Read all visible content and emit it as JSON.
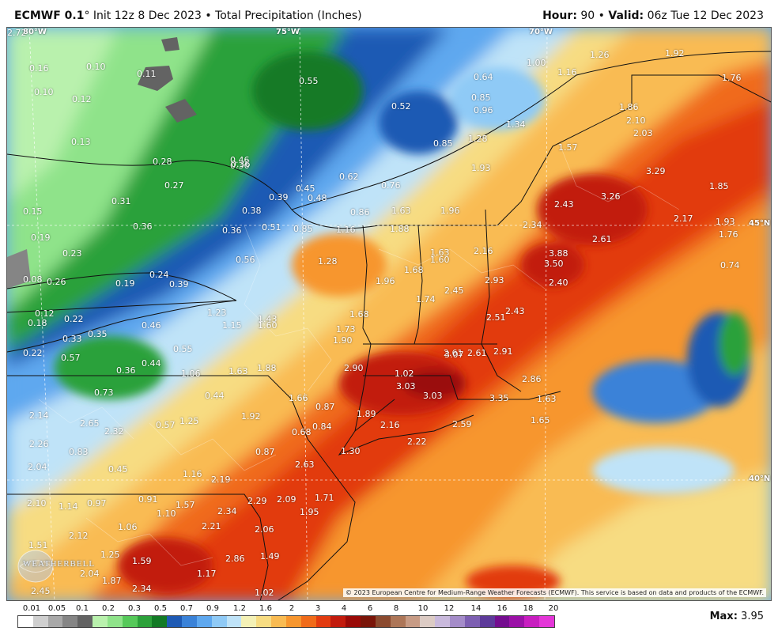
{
  "header": {
    "model": "ECMWF 0.1",
    "init": "Init 12z 8 Dec 2023",
    "product": "Total Precipitation (Inches)",
    "hour_label": "Hour",
    "hour": "90",
    "valid_label": "Valid",
    "valid": "06z Tue 12 Dec 2023"
  },
  "map": {
    "credit": "© 2023 European Centre for Medium-Range Weather Forecasts (ECMWF). This service is based on data and products of the ECMWF.",
    "logo_text": "WEATHERBELL",
    "grid_labels": [
      {
        "text": "80°W"
      },
      {
        "text": "75°W"
      },
      {
        "text": "70°W"
      },
      {
        "text": "45°N"
      },
      {
        "text": "40°N"
      }
    ],
    "values": [
      "0.16",
      "0.10",
      "0.11",
      "0.10",
      "0.12",
      "0.13",
      "0.28",
      "0.27",
      "0.46",
      "0.36",
      "0.55",
      "0.36",
      "0.52",
      "0.64",
      "1.00",
      "1.26",
      "1.92",
      "1.16",
      "1.76",
      "0.85",
      "0.96",
      "1.34",
      "0.85",
      "1.28",
      "0.62",
      "0.45",
      "0.48",
      "0.76",
      "1.57",
      "1.86",
      "2.10",
      "2.03",
      "1.93",
      "0.31",
      "0.36",
      "0.38",
      "0.39",
      "0.86",
      "1.63",
      "1.96",
      "3.29",
      "2.43",
      "3.26",
      "1.85",
      "0.15",
      "0.36",
      "0.51",
      "0.85",
      "1.16",
      "1.88",
      "2.34",
      "2.17",
      "1.93",
      "0.19",
      "0.23",
      "0.56",
      "1.28",
      "1.63",
      "1.60",
      "2.16",
      "2.61",
      "1.76",
      "0.74",
      "0.08",
      "0.26",
      "0.19",
      "0.24",
      "0.39",
      "1.96",
      "1.68",
      "3.88",
      "3.50",
      "2.45",
      "2.93",
      "2.40",
      "1.74",
      "2.43",
      "0.12",
      "0.18",
      "0.22",
      "1.23",
      "1.43",
      "1.60",
      "1.15",
      "1.68",
      "0.46",
      "0.33",
      "0.35",
      "0.55",
      "1.73",
      "1.90",
      "2.51",
      "0.22",
      "0.57",
      "0.44",
      "0.36",
      "1.06",
      "1.63",
      "1.88",
      "2.90",
      "2.61",
      "3.07",
      "2.61",
      "2.91",
      "2.86",
      "1.02",
      "3.03",
      "3.03",
      "3.35",
      "1.63",
      "0.73",
      "0.44",
      "1.66",
      "2.14",
      "0.87",
      "2.65",
      "0.57",
      "1.25",
      "1.92",
      "1.89",
      "2.32",
      "0.84",
      "2.16",
      "2.59",
      "1.65",
      "0.68",
      "2.22",
      "2.26",
      "0.83",
      "0.87",
      "2.63",
      "1.30",
      "2.04",
      "0.45",
      "1.16",
      "2.19",
      "2.10",
      "1.14",
      "0.97",
      "0.91",
      "1.57",
      "2.29",
      "2.09",
      "1.71",
      "2.34",
      "1.95",
      "2.12",
      "1.10",
      "2.21",
      "2.06",
      "1.51",
      "1.06",
      "1.49",
      "1.25",
      "1.59",
      "2.86",
      "2.04",
      "1.17",
      "1.87",
      "2.34",
      "2.45",
      "1.02",
      "2.72"
    ]
  },
  "legend": {
    "ticks": [
      "0.01",
      "0.05",
      "0.1",
      "0.2",
      "0.3",
      "0.5",
      "0.7",
      "0.9",
      "1.2",
      "1.6",
      "2",
      "3",
      "4",
      "6",
      "8",
      "10",
      "12",
      "14",
      "16",
      "18",
      "20"
    ],
    "colors": [
      "#ffffff",
      "#cfcfcf",
      "#a8a8a8",
      "#858585",
      "#636363",
      "#b9f1ad",
      "#8fe38a",
      "#56c95a",
      "#2ca13a",
      "#127a25",
      "#1e5ab4",
      "#3a82d8",
      "#5ea8ef",
      "#8fcaf6",
      "#bfe3f8",
      "#f4f1b6",
      "#f7dc82",
      "#f9bb52",
      "#f7962e",
      "#f06b1a",
      "#e23b10",
      "#c21b0d",
      "#9a0a07",
      "#7a1509",
      "#8b4a2f",
      "#ad7658",
      "#c79b85",
      "#dccbc4",
      "#c9b9dc",
      "#a48cc9",
      "#7d5fb2",
      "#5d3a9a",
      "#740d8f",
      "#9b11a7",
      "#c81ec0",
      "#e436d8"
    ],
    "max_label": "Max",
    "max_value": "3.95"
  }
}
